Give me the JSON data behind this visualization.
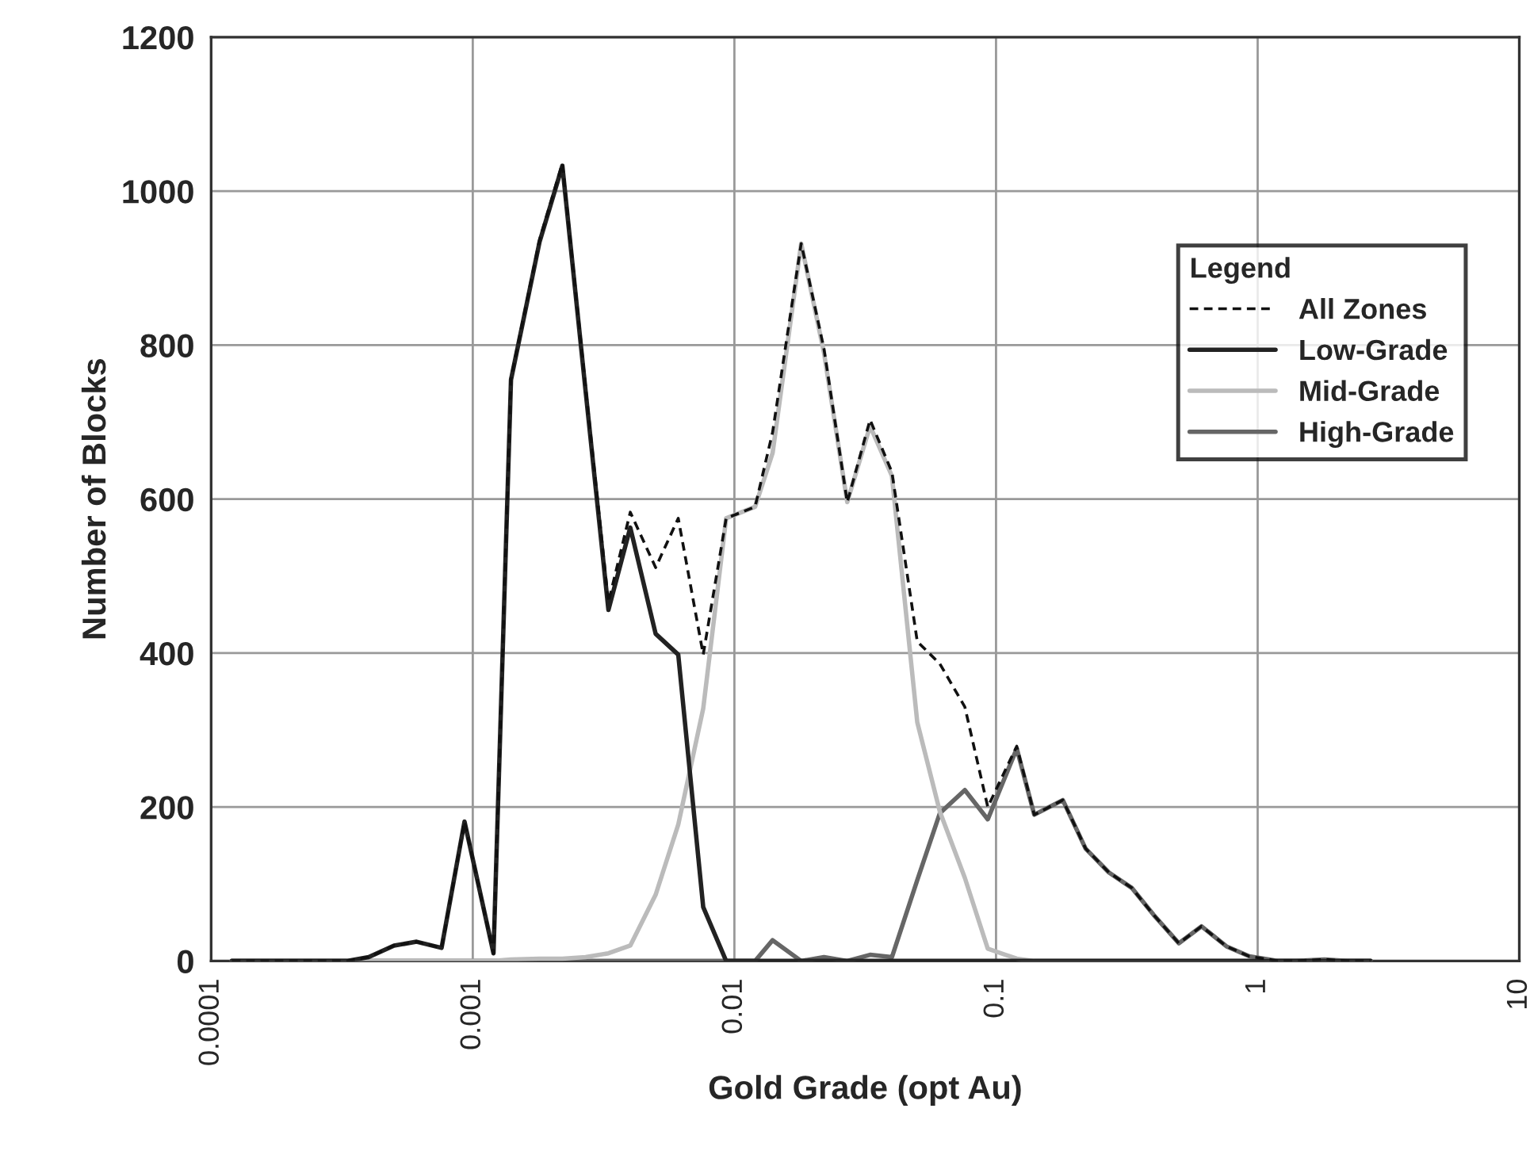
{
  "chart_data": {
    "type": "line",
    "xlabel": "Gold Grade (opt Au)",
    "ylabel": "Number of Blocks",
    "legend_title": "Legend",
    "x": [
      0.00012,
      0.00014,
      0.00017,
      0.00022,
      0.00027,
      0.00033,
      0.0004,
      0.0005,
      0.00061,
      0.00076,
      0.00093,
      0.0012,
      0.0014,
      0.0018,
      0.0022,
      0.0027,
      0.0033,
      0.004,
      0.005,
      0.0061,
      0.0076,
      0.0093,
      0.012,
      0.014,
      0.018,
      0.022,
      0.027,
      0.033,
      0.04,
      0.05,
      0.061,
      0.076,
      0.093,
      0.12,
      0.14,
      0.18,
      0.22,
      0.27,
      0.33,
      0.4,
      0.5,
      0.61,
      0.76,
      0.93,
      1.2,
      1.4,
      1.8,
      2.2,
      2.7
    ],
    "series": [
      {
        "name": "All Zones",
        "color": "#111111",
        "line_style": "dashed",
        "values": [
          0,
          0,
          0,
          0,
          0,
          0,
          5,
          20,
          25,
          17,
          181,
          10,
          757,
          937,
          1036,
          745,
          466,
          583,
          511,
          575,
          398,
          575,
          590,
          687,
          932,
          795,
          596,
          703,
          635,
          415,
          386,
          330,
          200,
          279,
          190,
          209,
          146,
          115,
          95,
          60,
          23,
          45,
          19,
          6,
          0,
          0,
          2,
          0,
          0
        ]
      },
      {
        "name": "Low-Grade",
        "color": "#222222",
        "line_style": "solid",
        "values": [
          0,
          0,
          0,
          0,
          0,
          0,
          5,
          20,
          25,
          17,
          181,
          10,
          755,
          934,
          1033,
          740,
          456,
          563,
          425,
          398,
          70,
          0,
          0,
          0,
          0,
          0,
          0,
          0,
          0,
          0,
          0,
          0,
          0,
          0,
          0,
          0,
          0,
          0,
          0,
          0,
          0,
          0,
          0,
          0,
          0,
          0,
          0,
          0,
          0
        ]
      },
      {
        "name": "Mid-Grade",
        "color": "#bbbbbb",
        "line_style": "solid",
        "values": [
          0,
          0,
          0,
          0,
          0,
          0,
          0,
          0,
          0,
          0,
          0,
          0,
          2,
          3,
          3,
          5,
          10,
          20,
          86,
          177,
          328,
          575,
          590,
          660,
          932,
          790,
          596,
          695,
          630,
          310,
          194,
          108,
          16,
          3,
          0,
          0,
          0,
          0,
          0,
          0,
          0,
          0,
          0,
          0,
          0,
          0,
          0,
          0,
          0
        ]
      },
      {
        "name": "High-Grade",
        "color": "#666666",
        "line_style": "solid",
        "values": [
          0,
          0,
          0,
          0,
          0,
          0,
          0,
          0,
          0,
          0,
          0,
          0,
          0,
          0,
          0,
          0,
          0,
          0,
          0,
          0,
          0,
          0,
          0,
          27,
          0,
          5,
          0,
          8,
          5,
          105,
          192,
          222,
          184,
          276,
          190,
          209,
          146,
          115,
          95,
          60,
          23,
          45,
          19,
          6,
          0,
          0,
          2,
          0,
          0
        ]
      }
    ],
    "log": "x",
    "xlim": [
      0.0001,
      10
    ],
    "xticks": [
      0.0001,
      0.001,
      0.01,
      0.1,
      1,
      10
    ],
    "ylim": [
      0,
      1200
    ],
    "yticks": [
      0,
      200,
      400,
      600,
      800,
      1000,
      1200
    ],
    "grid": true,
    "legend": "top right",
    "marker": "none"
  }
}
